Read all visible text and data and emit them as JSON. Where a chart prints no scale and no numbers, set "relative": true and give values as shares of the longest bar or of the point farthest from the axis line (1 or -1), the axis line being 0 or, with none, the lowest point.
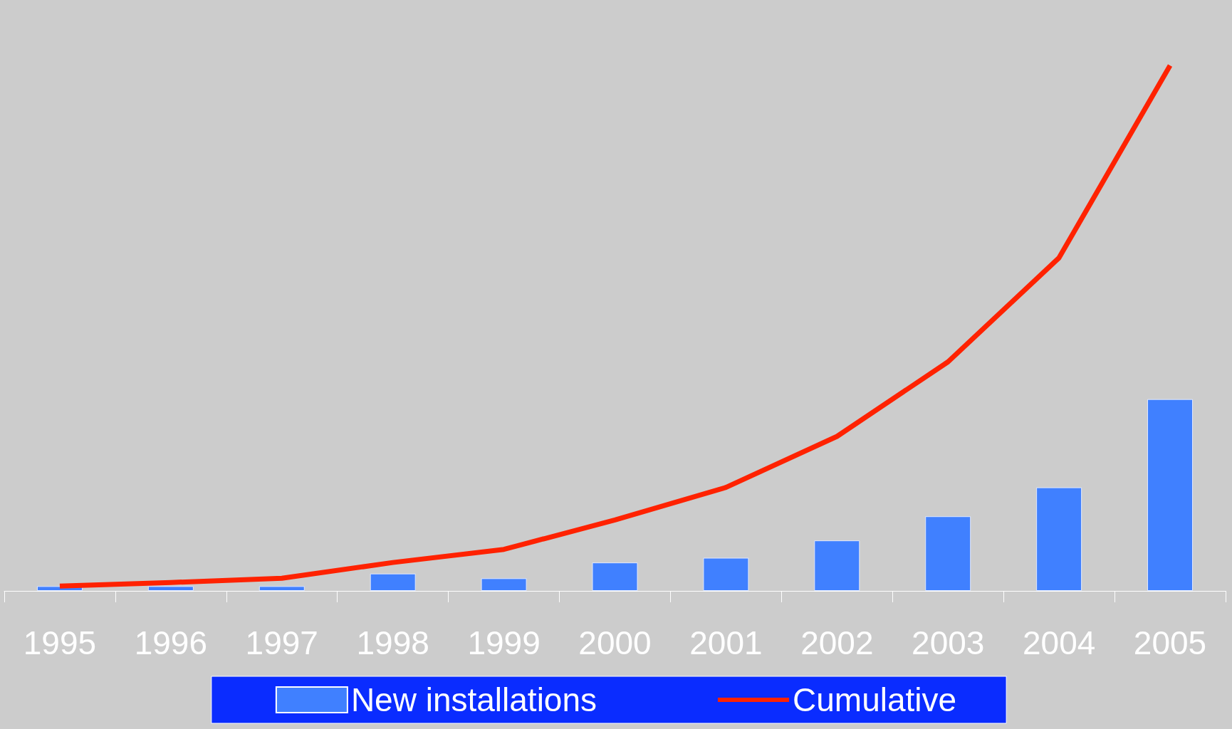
{
  "chart_data": {
    "type": "bar",
    "relative": true,
    "categories": [
      "1995",
      "1996",
      "1997",
      "1998",
      "1999",
      "2000",
      "2001",
      "2002",
      "2003",
      "2004",
      "2005"
    ],
    "series": [
      {
        "name": "New installations",
        "color": "#4080ff",
        "values": [
          0.009,
          0.009,
          0.009,
          0.033,
          0.024,
          0.054,
          0.063,
          0.096,
          0.142,
          0.197,
          0.365
        ]
      },
      {
        "name": "Cumulative",
        "type": "line",
        "color": "#ff2200",
        "values": [
          0.009,
          0.016,
          0.024,
          0.054,
          0.079,
          0.135,
          0.197,
          0.294,
          0.436,
          0.634,
          1
        ]
      }
    ],
    "legend": "bottom",
    "grid": false,
    "marker": "none"
  }
}
